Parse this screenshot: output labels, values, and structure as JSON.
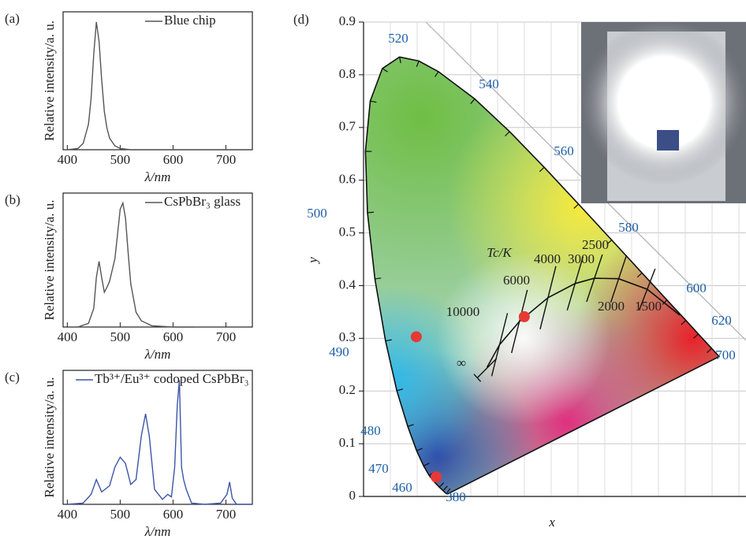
{
  "chart_data": [
    {
      "type": "line",
      "panel": "(a)",
      "xlabel": "λ/nm",
      "ylabel": "Relative intensity/a. u.",
      "x": [
        400,
        420,
        430,
        440,
        445,
        450,
        455,
        460,
        465,
        470,
        475,
        480,
        490,
        500,
        520,
        750
      ],
      "series": [
        {
          "name": "Blue chip",
          "color": "#555555",
          "values": [
            0,
            0.01,
            0.05,
            0.2,
            0.4,
            0.75,
            1.0,
            0.85,
            0.55,
            0.3,
            0.17,
            0.09,
            0.03,
            0.01,
            0,
            0
          ]
        }
      ],
      "xlim": [
        392,
        750
      ],
      "xticks": [
        400,
        500,
        600,
        700
      ],
      "ylim": [
        0,
        1.08
      ]
    },
    {
      "type": "line",
      "panel": "(b)",
      "xlabel": "λ/nm",
      "ylabel": "Relative intensity/a. u.",
      "x": [
        420,
        440,
        450,
        455,
        460,
        465,
        470,
        475,
        480,
        490,
        495,
        500,
        505,
        510,
        515,
        520,
        530,
        540,
        560,
        600,
        640
      ],
      "series": [
        {
          "name": "CsPbBr₃ glass",
          "color": "#555555",
          "values": [
            0,
            0.03,
            0.15,
            0.4,
            0.53,
            0.4,
            0.28,
            0.32,
            0.37,
            0.55,
            0.75,
            0.95,
            1.0,
            0.88,
            0.6,
            0.35,
            0.12,
            0.05,
            0.01,
            0,
            0
          ]
        }
      ],
      "xlim": [
        392,
        750
      ],
      "xticks": [
        400,
        500,
        600,
        700
      ],
      "ylim": [
        0,
        1.08
      ]
    },
    {
      "type": "line",
      "panel": "(c)",
      "xlabel": "λ/nm",
      "ylabel": "Relative intensity/a. u.",
      "x": [
        400,
        430,
        445,
        455,
        465,
        480,
        490,
        500,
        510,
        520,
        530,
        540,
        548,
        555,
        565,
        580,
        590,
        597,
        603,
        608,
        612,
        616,
        620,
        625,
        635,
        660,
        690,
        702,
        707,
        712,
        720,
        750
      ],
      "series": [
        {
          "name": "Tb³⁺/Eu³⁺ codoped CsPbBr₃",
          "color": "#3d55a8",
          "values": [
            0,
            0.01,
            0.08,
            0.2,
            0.1,
            0.15,
            0.3,
            0.38,
            0.33,
            0.16,
            0.2,
            0.55,
            0.73,
            0.55,
            0.12,
            0.04,
            0.08,
            0.06,
            0.3,
            0.8,
            1.0,
            0.3,
            0.2,
            0.12,
            0.01,
            0,
            0.01,
            0.08,
            0.18,
            0.05,
            0,
            0
          ]
        }
      ],
      "xlim": [
        392,
        750
      ],
      "xticks": [
        400,
        500,
        600,
        700
      ],
      "ylim": [
        0,
        1.08
      ]
    },
    {
      "type": "scatter",
      "panel": "(d)",
      "xlabel": "x",
      "ylabel": "y",
      "x": [
        0.109,
        0.15,
        0.332
      ],
      "series": [
        {
          "color": "#e53935",
          "values": [
            0.303,
            0.037,
            0.341
          ]
        }
      ],
      "xlim": [
        0,
        0.79
      ],
      "ylim": [
        0,
        0.9
      ],
      "yticks": [
        0,
        0.1,
        0.2,
        0.3,
        0.4,
        0.5,
        0.6,
        0.7,
        0.8,
        0.9
      ],
      "grid": true,
      "spectral_labels": [
        "520",
        "540",
        "560",
        "580",
        "600",
        "620",
        "700",
        "500",
        "490",
        "480",
        "470",
        "460",
        "380"
      ],
      "cct_title": "Tc/K",
      "cct_labels": [
        "10000",
        "6000",
        "4000",
        "3000",
        "2500",
        "2000",
        "1500",
        "∞"
      ]
    }
  ]
}
